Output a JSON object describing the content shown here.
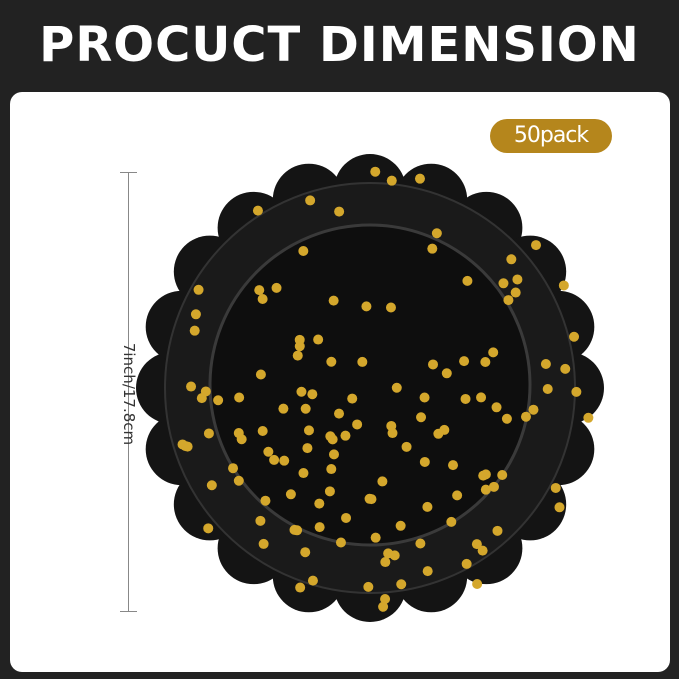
{
  "header": {
    "title": "PROCUCT DIMENSION"
  },
  "badge": {
    "label": "50pack",
    "color": "#b5861c"
  },
  "dimension": {
    "label": "7inch/17.8cm"
  },
  "product": {
    "plate_color": "#141414",
    "dot_color": "#d4a72c"
  }
}
